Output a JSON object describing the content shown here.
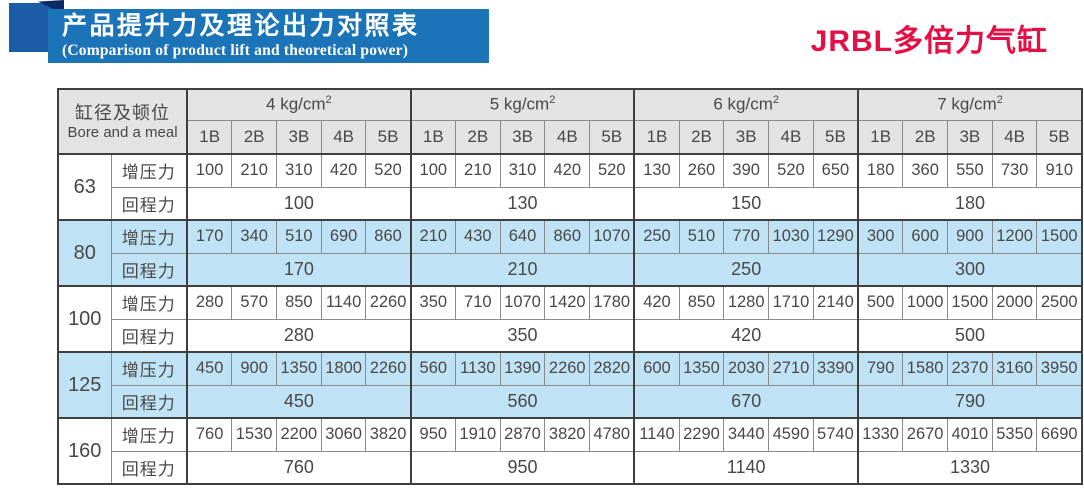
{
  "header": {
    "title": "产品提升力及理论出力对照表",
    "subtitle": "(Comparison of product lift and theoretical power)",
    "product_name": "JRBL多倍力气缸"
  },
  "colors": {
    "banner_blue": "#1b74b8",
    "deco_square_blue": "#1a5ca6",
    "deco_fold_navy": "#0d2a66",
    "product_name_red": "#e60f45",
    "header_cell_gray": "#e3e3e3",
    "highlight_row_blue": "#bfe2f4",
    "border_dark": "#3f3f3f",
    "border_light": "#8a8a8a"
  },
  "table": {
    "corner_zh": "缸径及顿位",
    "corner_en": "Bore and a meal",
    "pressures": [
      "4",
      "5",
      "6",
      "7"
    ],
    "pressure_unit": "kg/cm",
    "pressure_sup": "2",
    "sub_columns": [
      "1B",
      "2B",
      "3B",
      "4B",
      "5B"
    ],
    "row_labels": {
      "boost": "增压力",
      "return": "回程力"
    },
    "groups": [
      {
        "bore": "63",
        "highlight": false,
        "boost": [
          [
            100,
            210,
            310,
            420,
            520
          ],
          [
            100,
            210,
            310,
            420,
            520
          ],
          [
            130,
            260,
            390,
            520,
            650
          ],
          [
            180,
            360,
            550,
            730,
            910
          ]
        ],
        "return": [
          100,
          130,
          150,
          180
        ]
      },
      {
        "bore": "80",
        "highlight": true,
        "boost": [
          [
            170,
            340,
            510,
            690,
            860
          ],
          [
            210,
            430,
            640,
            860,
            1070
          ],
          [
            250,
            510,
            770,
            1030,
            1290
          ],
          [
            300,
            600,
            900,
            1200,
            1500
          ]
        ],
        "return": [
          170,
          210,
          250,
          300
        ]
      },
      {
        "bore": "100",
        "highlight": false,
        "boost": [
          [
            280,
            570,
            850,
            1140,
            2260
          ],
          [
            350,
            710,
            1070,
            1420,
            1780
          ],
          [
            420,
            850,
            1280,
            1710,
            2140
          ],
          [
            500,
            1000,
            1500,
            2000,
            2500
          ]
        ],
        "return": [
          280,
          350,
          420,
          500
        ]
      },
      {
        "bore": "125",
        "highlight": true,
        "boost": [
          [
            450,
            900,
            1350,
            1800,
            2260
          ],
          [
            560,
            1130,
            1390,
            2260,
            2820
          ],
          [
            600,
            1350,
            2030,
            2710,
            3390
          ],
          [
            790,
            1580,
            2370,
            3160,
            3950
          ]
        ],
        "return": [
          450,
          560,
          670,
          790
        ]
      },
      {
        "bore": "160",
        "highlight": false,
        "boost": [
          [
            760,
            1530,
            2200,
            3060,
            3820
          ],
          [
            950,
            1910,
            2870,
            3820,
            4780
          ],
          [
            1140,
            2290,
            3440,
            4590,
            5740
          ],
          [
            1330,
            2670,
            4010,
            5350,
            6690
          ]
        ],
        "return": [
          760,
          950,
          1140,
          1330
        ]
      }
    ]
  }
}
